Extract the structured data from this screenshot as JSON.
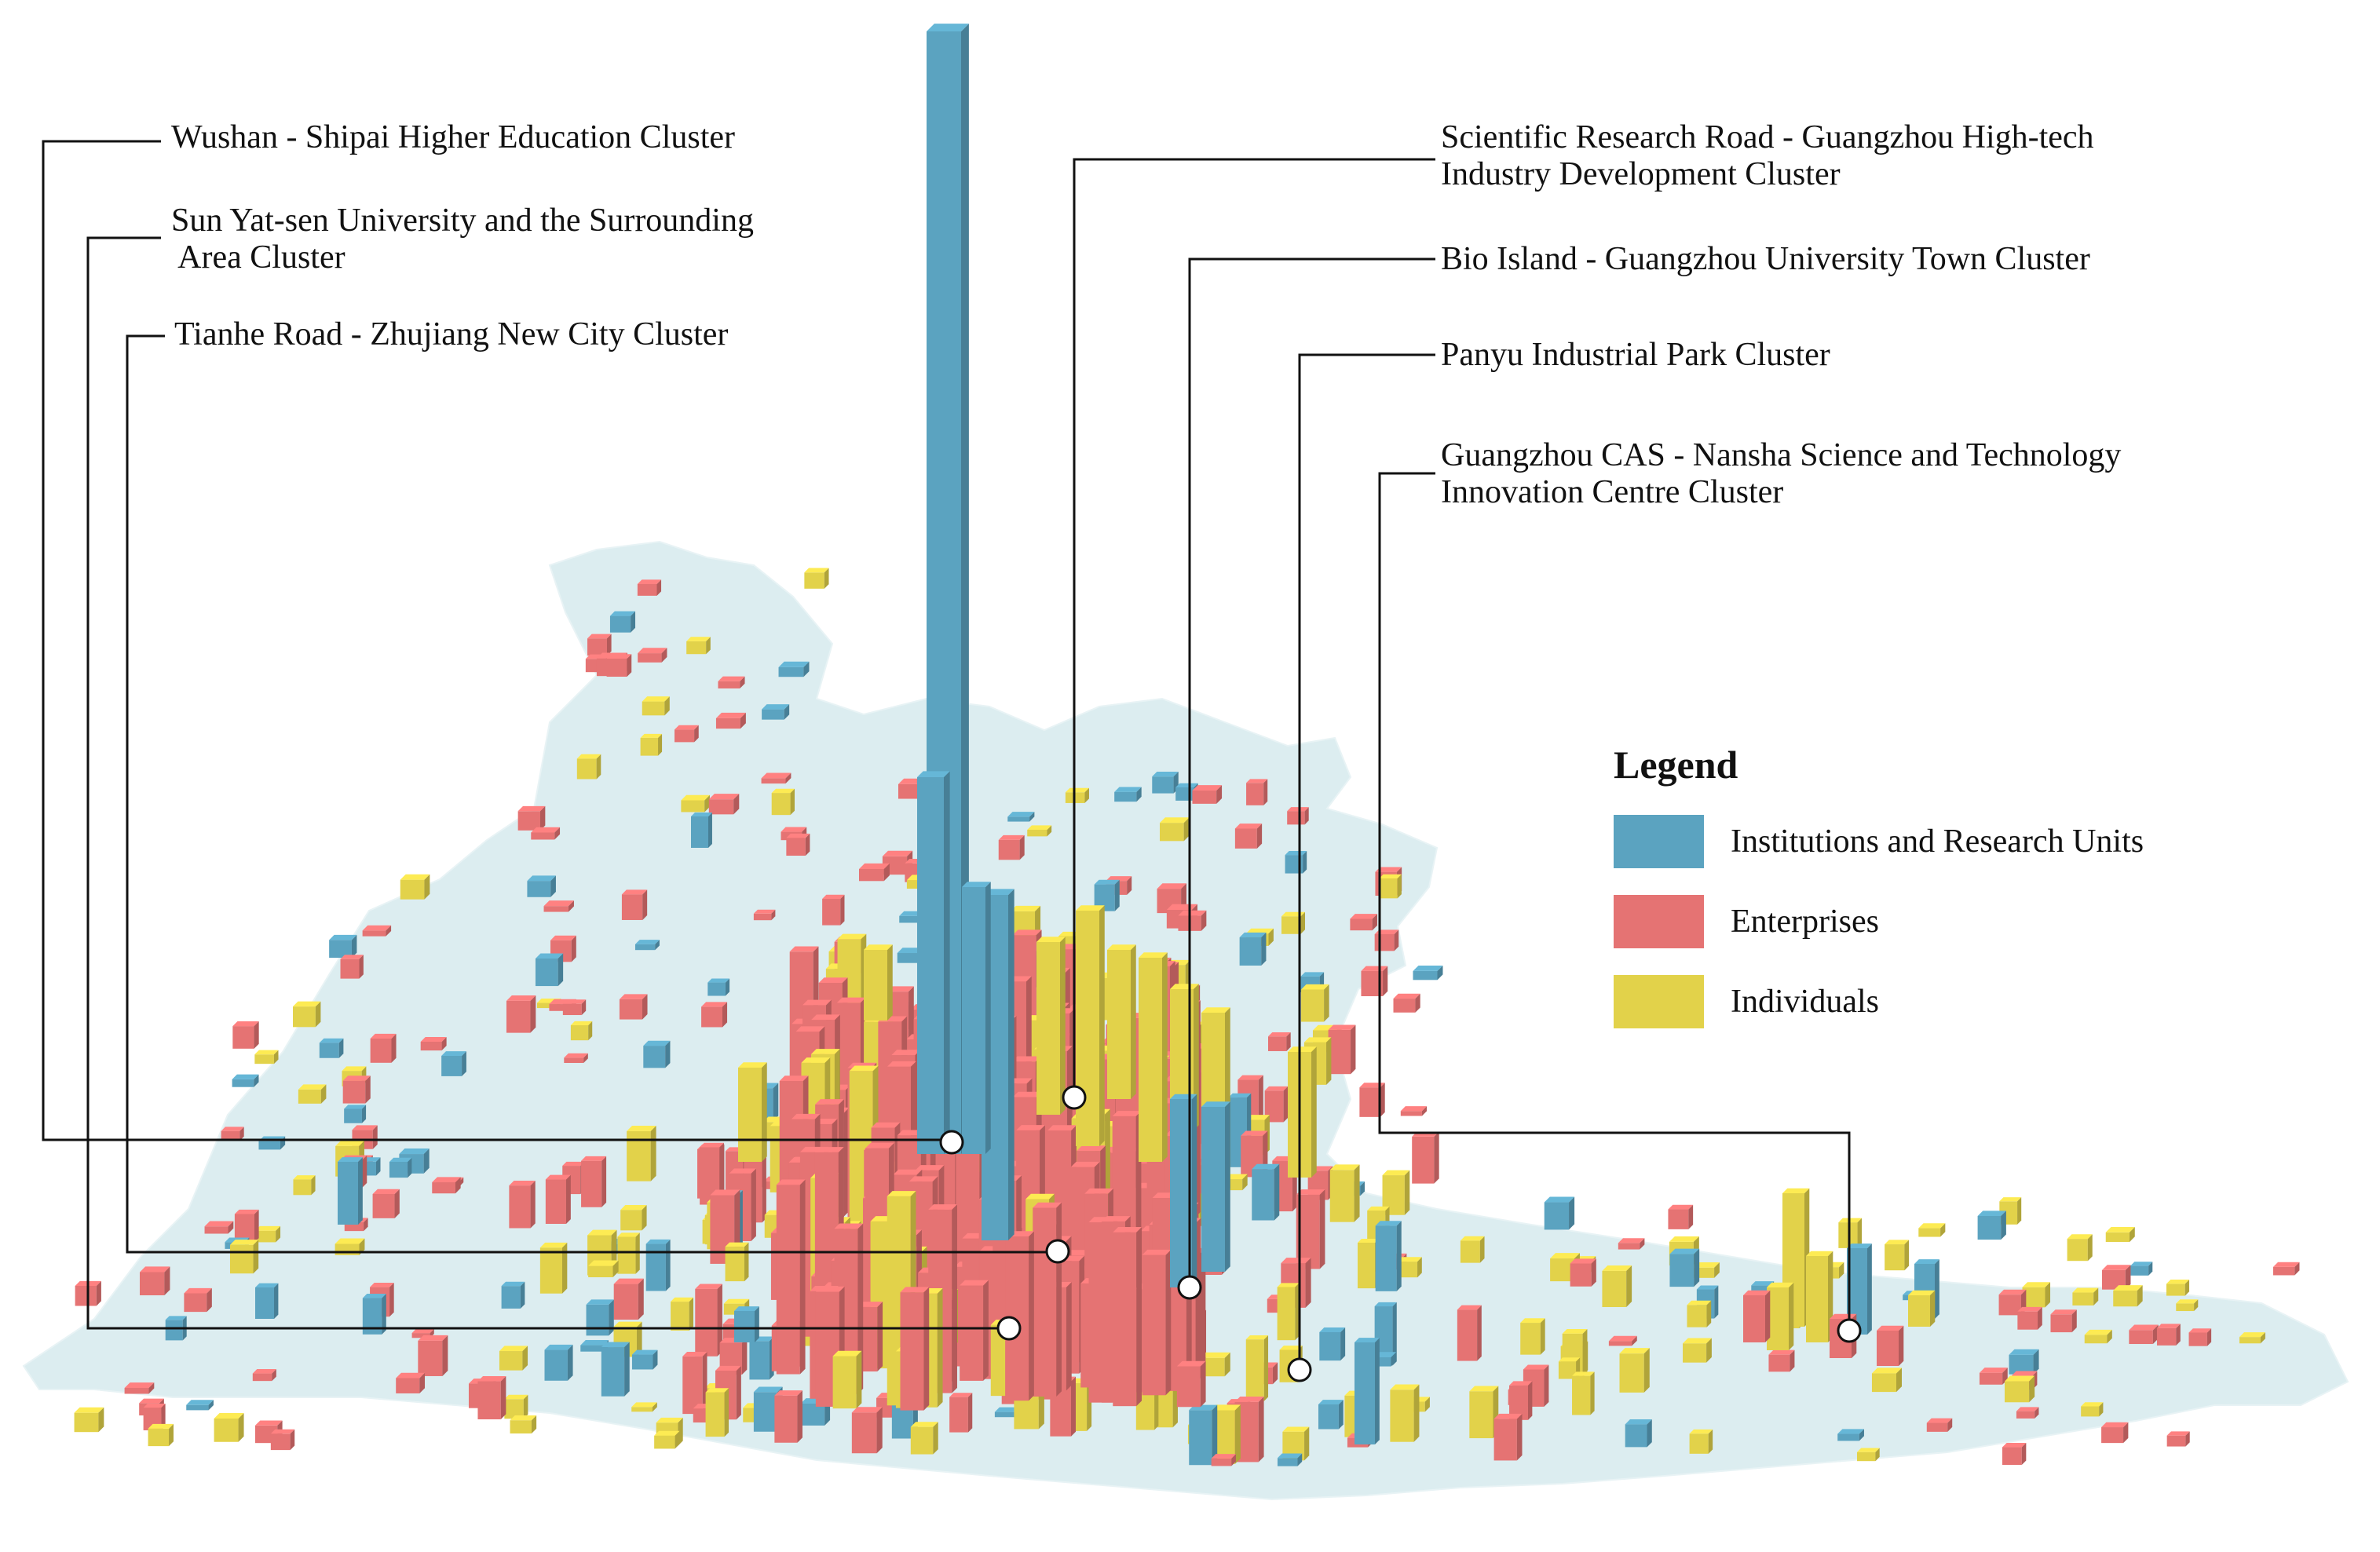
{
  "colors": {
    "institutions": "#5ba3c0",
    "enterprises": "#e57373",
    "individuals": "#e2d24a",
    "base_map": "#dcedf0",
    "leader_line": "#111111"
  },
  "clusters": [
    {
      "id": "wushan-shipai",
      "label": "Wushan - Shipai Higher Education Cluster"
    },
    {
      "id": "sun-yat-sen",
      "label": "Sun Yat-sen University and the Surrounding\n Area Cluster"
    },
    {
      "id": "tianhe-road",
      "label": "Tianhe Road - Zhujiang New City Cluster"
    },
    {
      "id": "scientific-research-road",
      "label": "Scientific Research Road - Guangzhou High-tech\nIndustry Development Cluster"
    },
    {
      "id": "bio-island",
      "label": "Bio Island - Guangzhou University Town Cluster"
    },
    {
      "id": "panyu",
      "label": "Panyu Industrial Park Cluster"
    },
    {
      "id": "guangzhou-cas-nansha",
      "label": "Guangzhou CAS - Nansha Science and Technology\nInnovation Centre Cluster"
    }
  ],
  "legend": {
    "title": "Legend",
    "items": [
      {
        "label": "Institutions and Research Units",
        "color_key": "institutions"
      },
      {
        "label": "Enterprises",
        "color_key": "enterprises"
      },
      {
        "label": "Individuals",
        "color_key": "individuals"
      }
    ]
  }
}
